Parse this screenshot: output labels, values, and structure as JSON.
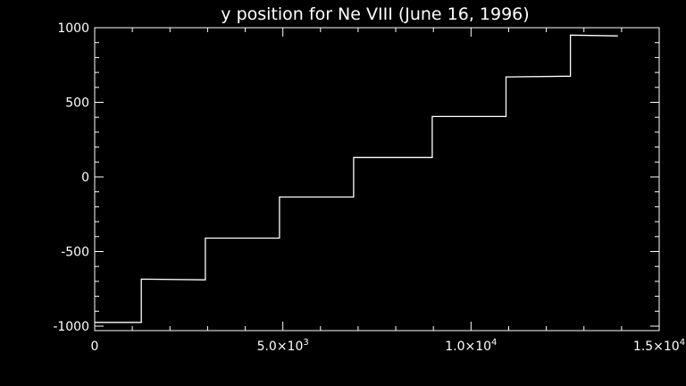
{
  "chart_data": {
    "type": "line",
    "title": "y position for Ne VIII (June 16, 1996)",
    "xlabel": "",
    "ylabel": "",
    "xlim": [
      0,
      15000
    ],
    "ylim": [
      -1030,
      1000
    ],
    "x_ticks": [
      {
        "value": 0,
        "label": "0",
        "sup": ""
      },
      {
        "value": 5000,
        "label": "5.0×10",
        "sup": "3"
      },
      {
        "value": 10000,
        "label": "1.0×10",
        "sup": "4"
      },
      {
        "value": 15000,
        "label": "1.5×10",
        "sup": "4"
      }
    ],
    "y_ticks": [
      {
        "value": 1000,
        "label": "1000"
      },
      {
        "value": 500,
        "label": "500"
      },
      {
        "value": 0,
        "label": "0"
      },
      {
        "value": -500,
        "label": "-500"
      },
      {
        "value": -1000,
        "label": "-1000"
      }
    ],
    "grid": false,
    "colors": {
      "background": "#000000",
      "foreground": "#ffffff"
    },
    "series": [
      {
        "x": [
          0,
          1240,
          1240,
          2940,
          2940,
          4910,
          4910,
          6880,
          6880,
          8970,
          8970,
          10930,
          10930,
          12640,
          12640,
          13900
        ],
        "y": [
          -975,
          -975,
          -685,
          -690,
          -410,
          -410,
          -135,
          -135,
          130,
          130,
          405,
          405,
          670,
          675,
          950,
          945
        ]
      }
    ]
  }
}
